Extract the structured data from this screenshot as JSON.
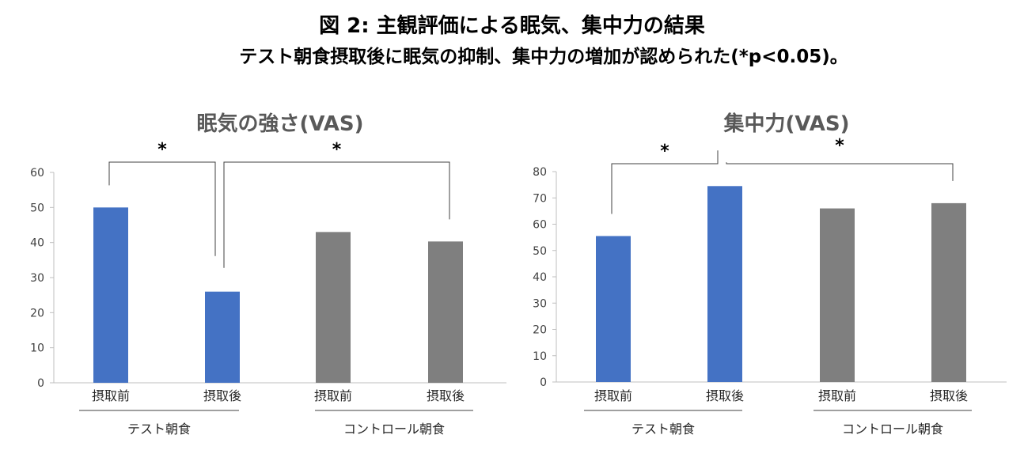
{
  "figure": {
    "title": "図 2:  主観評価による眠気、集中力の結果",
    "subtitle": "テスト朝食摂取後に眠気の抑制、集中力の増加が認められた(*p<0.05)。"
  },
  "chart_data": [
    {
      "type": "bar",
      "title": "眠気の強さ(VAS)",
      "categories": [
        "摂取前",
        "摂取後",
        "摂取前",
        "摂取後"
      ],
      "groups": [
        {
          "label": "テスト朝食",
          "categories": [
            0,
            1
          ]
        },
        {
          "label": "コントロール朝食",
          "categories": [
            2,
            3
          ]
        }
      ],
      "values": [
        50,
        26,
        43,
        40.3
      ],
      "colors": [
        "#4472C4",
        "#4472C4",
        "#7F7F7F",
        "#7F7F7F"
      ],
      "ylim": [
        0,
        60
      ],
      "yticks": [
        0,
        10,
        20,
        30,
        40,
        50,
        60
      ],
      "grid": false,
      "significance": [
        {
          "from": 0,
          "to": 1,
          "label": "*"
        },
        {
          "from": 1,
          "to": 3,
          "label": "*"
        }
      ]
    },
    {
      "type": "bar",
      "title": "集中力(VAS)",
      "categories": [
        "摂取前",
        "摂取後",
        "摂取前",
        "摂取後"
      ],
      "groups": [
        {
          "label": "テスト朝食",
          "categories": [
            0,
            1
          ]
        },
        {
          "label": "コントロール朝食",
          "categories": [
            2,
            3
          ]
        }
      ],
      "values": [
        55.5,
        74.5,
        66,
        68
      ],
      "colors": [
        "#4472C4",
        "#4472C4",
        "#7F7F7F",
        "#7F7F7F"
      ],
      "ylim": [
        0,
        80
      ],
      "yticks": [
        0,
        10,
        20,
        30,
        40,
        50,
        60,
        70,
        80
      ],
      "grid": false,
      "significance": [
        {
          "from": 0,
          "to": 1,
          "label": "*"
        },
        {
          "from": 1,
          "to": 3,
          "label": "*"
        }
      ]
    }
  ]
}
